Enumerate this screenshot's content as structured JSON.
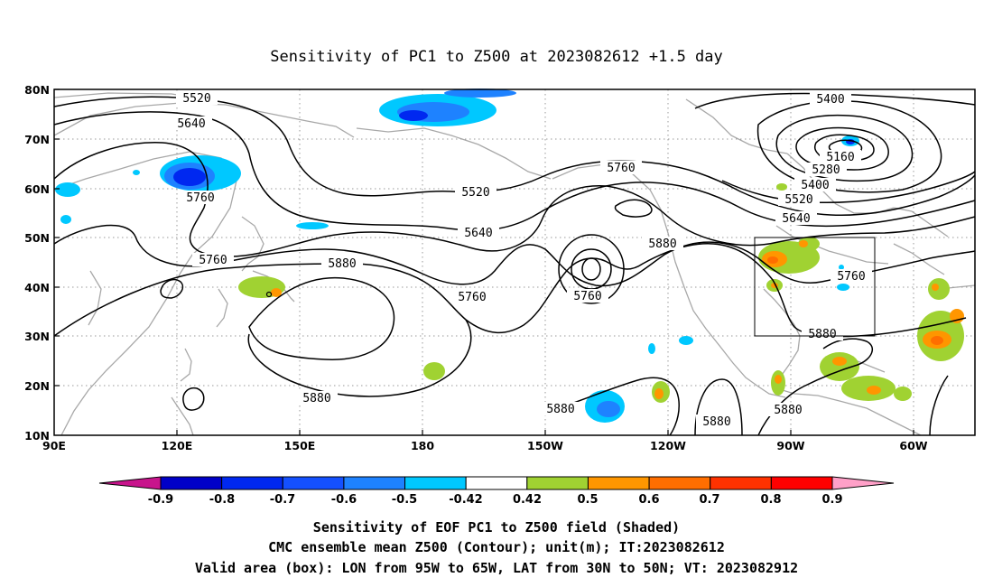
{
  "title": "Sensitivity of PC1 to Z500 at 2023082612 +1.5 day",
  "map": {
    "lat_ticks": [
      "80N",
      "70N",
      "60N",
      "50N",
      "40N",
      "30N",
      "20N",
      "10N"
    ],
    "lon_ticks": [
      "90E",
      "120E",
      "150E",
      "180",
      "150W",
      "120W",
      "90W",
      "60W"
    ],
    "contour_labels": [
      "5520",
      "5640",
      "5760",
      "5400",
      "5160",
      "5280",
      "5400",
      "5520",
      "5640",
      "5760",
      "5520",
      "5640",
      "5880",
      "5760",
      "5880",
      "5760",
      "5760",
      "5880",
      "5760",
      "5880",
      "5880",
      "5880",
      "5880",
      "5880"
    ],
    "box_region": {
      "lon": [
        "95W",
        "65W"
      ],
      "lat": [
        "30N",
        "50N"
      ]
    }
  },
  "colorbar": {
    "labels": [
      "-0.9",
      "-0.8",
      "-0.7",
      "-0.6",
      "-0.5",
      "-0.42",
      "0.42",
      "0.5",
      "0.6",
      "0.7",
      "0.8",
      "0.9"
    ],
    "colors": [
      "#0000c8",
      "#0028f0",
      "#1450ff",
      "#1e82ff",
      "#00c8ff",
      "#ffffff",
      "#a0d232",
      "#ff9600",
      "#ff6e00",
      "#ff3200",
      "#ff0000"
    ],
    "low_end_color": "#c8148c",
    "high_end_color": "#ffa0c8"
  },
  "captions": [
    "Sensitivity of EOF PC1 to Z500 field (Shaded)",
    "CMC ensemble mean Z500 (Contour); unit(m); IT:2023082612",
    "Valid area (box): LON from 95W to 65W, LAT from 30N to 50N; VT: 2023082912"
  ]
}
